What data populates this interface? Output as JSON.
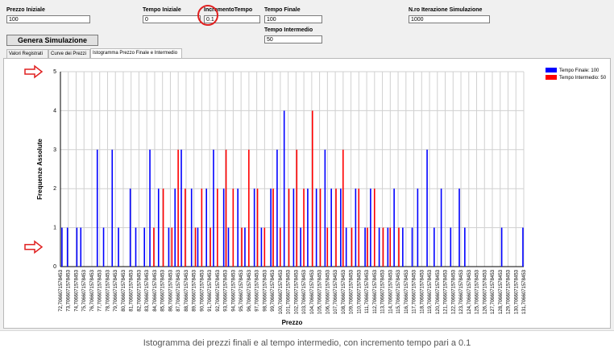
{
  "form": {
    "prezzo_iniziale": {
      "label": "Prezzo Iniziale",
      "value": "100"
    },
    "tempo_iniziale": {
      "label": "Tempo Iniziale",
      "value": "0"
    },
    "incremento_tempo": {
      "label": "IncrementoTempo",
      "value": "0.1"
    },
    "tempo_finale": {
      "label": "Tempo Finale",
      "value": "100"
    },
    "iterazioni": {
      "label": "N.ro Iterazione Simulazione",
      "value": "1000"
    },
    "tempo_intermedio": {
      "label": "Tempo Intermedio",
      "value": "50"
    },
    "genera_label": "Genera Simulazione"
  },
  "tabs": [
    {
      "label": "Valori Registrati",
      "active": false
    },
    {
      "label": "Curve dei Prezzi",
      "active": false
    },
    {
      "label": "Istogramma Prezzo Finale e Intermedio",
      "active": true
    }
  ],
  "chart_data": {
    "type": "bar",
    "ylabel": "Frequenze Assolute",
    "xlabel": "Prezzo",
    "ylim": [
      0,
      5
    ],
    "yticks": [
      "0",
      "1",
      "2",
      "3",
      "4",
      "5"
    ],
    "xticks": [
      "72,7066071578453",
      "73,7066071578453",
      "74,7066071578453",
      "75,7066071578453",
      "76,7066071578453",
      "77,7066071578453",
      "78,7066071578453",
      "79,7066071578453",
      "80,7066071578453",
      "81,7066071578453",
      "82,7066071578453",
      "83,7066071578453",
      "84,7066071578453",
      "85,7066071578453",
      "86,7066071578453",
      "87,7066071578453",
      "88,7066071578453",
      "89,7066071578453",
      "90,7066071578453",
      "91,7066071578453",
      "92,7066071578453",
      "93,7066071578453",
      "94,7066071578453",
      "95,7066071578453",
      "96,7066071578453",
      "97,7066071578453",
      "98,7066071578453",
      "99,7066071578453",
      "100,7066071578453",
      "101,7066071578453",
      "102,7066071578453",
      "103,7066071578453",
      "104,7066071578453",
      "105,7066071578453",
      "106,7066071578453",
      "107,7066071578453",
      "108,7066071578453",
      "109,7066071578453",
      "110,7066071578453",
      "111,7066071578453",
      "112,7066071578453",
      "113,7066071578453",
      "114,7066071578453",
      "115,7066071578453",
      "116,7066071578453",
      "117,7066071578453",
      "118,7066071578453",
      "119,7066071578453",
      "120,7066071578453",
      "121,7066071578453",
      "122,7066071578453",
      "123,7066071578453",
      "124,7066071578453",
      "125,7066071578453",
      "126,7066071578453",
      "127,7066071578453",
      "128,7066071578453",
      "129,7066071578453",
      "130,7066071578453",
      "131,7066071578453"
    ],
    "xrange": [
      72.7066071578453,
      131.7066071578453
    ],
    "grid": true,
    "legend_position": "top-right",
    "series": [
      {
        "name": "Tempo Finale: 100",
        "color": "#0000ff",
        "points": [
          [
            72.9,
            1
          ],
          [
            73.6,
            1
          ],
          [
            74.8,
            1
          ],
          [
            75.3,
            1
          ],
          [
            77.4,
            3
          ],
          [
            78.2,
            1
          ],
          [
            79.3,
            3
          ],
          [
            80.1,
            1
          ],
          [
            81.6,
            2
          ],
          [
            82.3,
            1
          ],
          [
            83.4,
            1
          ],
          [
            84.1,
            3
          ],
          [
            85.2,
            2
          ],
          [
            86.5,
            1
          ],
          [
            87.3,
            2
          ],
          [
            88.1,
            3
          ],
          [
            89.4,
            2
          ],
          [
            90.2,
            1
          ],
          [
            91.3,
            2
          ],
          [
            92.2,
            3
          ],
          [
            93.5,
            2
          ],
          [
            94.1,
            1
          ],
          [
            95.3,
            2
          ],
          [
            96.2,
            1
          ],
          [
            97.4,
            2
          ],
          [
            98.3,
            1
          ],
          [
            99.5,
            2
          ],
          [
            100.3,
            3
          ],
          [
            101.2,
            4
          ],
          [
            102.4,
            2
          ],
          [
            103.3,
            1
          ],
          [
            104.2,
            2
          ],
          [
            105.3,
            2
          ],
          [
            106.4,
            3
          ],
          [
            107.2,
            2
          ],
          [
            108.4,
            2
          ],
          [
            109.1,
            1
          ],
          [
            110.3,
            2
          ],
          [
            111.5,
            1
          ],
          [
            112.2,
            2
          ],
          [
            113.3,
            1
          ],
          [
            114.4,
            1
          ],
          [
            115.2,
            2
          ],
          [
            116.3,
            1
          ],
          [
            117.5,
            1
          ],
          [
            118.2,
            2
          ],
          [
            119.4,
            3
          ],
          [
            120.3,
            1
          ],
          [
            121.2,
            2
          ],
          [
            122.4,
            1
          ],
          [
            123.5,
            2
          ],
          [
            124.2,
            1
          ],
          [
            128.9,
            1
          ],
          [
            131.6,
            1
          ]
        ]
      },
      {
        "name": "Tempo Intermedio: 50",
        "color": "#ff0000",
        "points": [
          [
            84.6,
            1
          ],
          [
            85.8,
            2
          ],
          [
            86.9,
            1
          ],
          [
            87.7,
            3
          ],
          [
            88.6,
            2
          ],
          [
            89.9,
            1
          ],
          [
            90.7,
            2
          ],
          [
            91.8,
            1
          ],
          [
            92.7,
            2
          ],
          [
            93.8,
            3
          ],
          [
            94.7,
            2
          ],
          [
            95.8,
            1
          ],
          [
            96.7,
            3
          ],
          [
            97.8,
            2
          ],
          [
            98.7,
            1
          ],
          [
            99.8,
            2
          ],
          [
            100.7,
            1
          ],
          [
            101.8,
            2
          ],
          [
            102.8,
            3
          ],
          [
            103.7,
            2
          ],
          [
            104.8,
            4
          ],
          [
            105.8,
            2
          ],
          [
            106.7,
            1
          ],
          [
            107.8,
            2
          ],
          [
            108.7,
            3
          ],
          [
            109.8,
            1
          ],
          [
            110.7,
            2
          ],
          [
            111.8,
            1
          ],
          [
            112.7,
            2
          ],
          [
            113.8,
            1
          ],
          [
            114.7,
            1
          ],
          [
            115.8,
            1
          ]
        ]
      }
    ]
  },
  "caption": "Istogramma dei prezzi finali e al tempo intermedio, con incremento tempo pari a 0.1"
}
